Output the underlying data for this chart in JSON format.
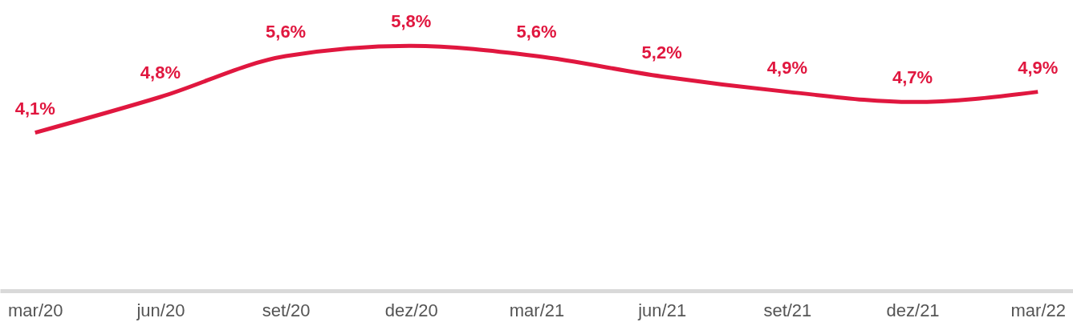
{
  "chart_data": {
    "type": "line",
    "categories": [
      "mar/20",
      "jun/20",
      "set/20",
      "dez/20",
      "mar/21",
      "jun/21",
      "set/21",
      "dez/21",
      "mar/22"
    ],
    "series": [
      {
        "color": "#e0173f",
        "values": [
          4.1,
          4.8,
          5.6,
          5.8,
          5.6,
          5.2,
          4.9,
          4.7,
          4.9
        ],
        "value_labels": [
          "4,1%",
          "4,8%",
          "5,6%",
          "5,8%",
          "5,6%",
          "5,2%",
          "4,9%",
          "4,7%",
          "4,9%"
        ]
      }
    ],
    "ylim": [
      1,
      6.7
    ],
    "tick_labels": "x",
    "grid": false,
    "marker": "none",
    "line_style": "solid"
  }
}
